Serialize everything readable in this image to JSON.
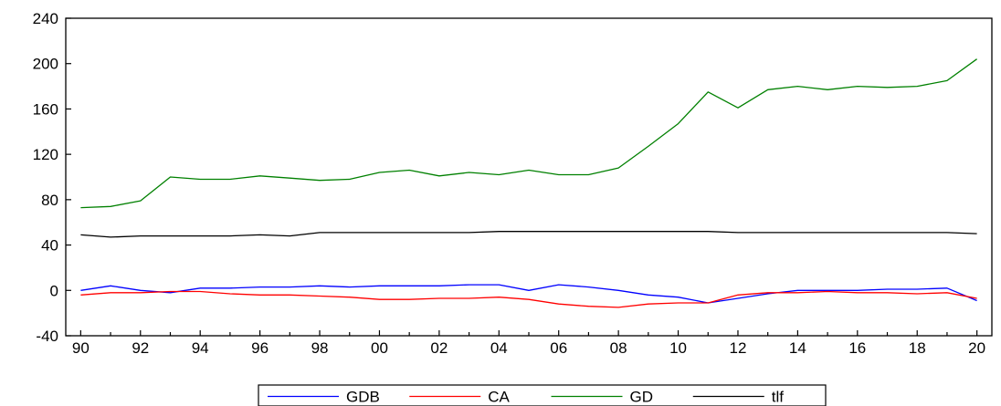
{
  "chart_data": {
    "type": "line",
    "title": "",
    "xlabel": "",
    "ylabel": "",
    "x": [
      1990,
      1991,
      1992,
      1993,
      1994,
      1995,
      1996,
      1997,
      1998,
      1999,
      2000,
      2001,
      2002,
      2003,
      2004,
      2005,
      2006,
      2007,
      2008,
      2009,
      2010,
      2011,
      2012,
      2013,
      2014,
      2015,
      2016,
      2017,
      2018,
      2019,
      2020
    ],
    "x_tick_labels": [
      "90",
      "92",
      "94",
      "96",
      "98",
      "00",
      "02",
      "04",
      "06",
      "08",
      "10",
      "12",
      "14",
      "16",
      "18",
      "20"
    ],
    "x_tick_years": [
      1990,
      1992,
      1994,
      1996,
      1998,
      2000,
      2002,
      2004,
      2006,
      2008,
      2010,
      2012,
      2014,
      2016,
      2018,
      2020
    ],
    "xlim": [
      1989.5,
      2020.5
    ],
    "ylim": [
      -40,
      240
    ],
    "y_ticks": [
      -40,
      0,
      40,
      80,
      120,
      160,
      200,
      240
    ],
    "y_tick_labels": [
      "-40",
      "0",
      "40",
      "80",
      "120",
      "160",
      "200",
      "240"
    ],
    "grid": false,
    "legend_position": "bottom-center",
    "series": [
      {
        "name": "GDB",
        "color": "#0000ff",
        "values": [
          0,
          4,
          0,
          -2,
          2,
          2,
          3,
          3,
          4,
          3,
          4,
          4,
          4,
          5,
          5,
          0,
          5,
          3,
          0,
          -4,
          -6,
          -11,
          -7,
          -3,
          0,
          0,
          0,
          1,
          1,
          2,
          -9
        ]
      },
      {
        "name": "CA",
        "color": "#ff0000",
        "values": [
          -4,
          -2,
          -2,
          -1,
          -1,
          -3,
          -4,
          -4,
          -5,
          -6,
          -8,
          -8,
          -7,
          -7,
          -6,
          -8,
          -12,
          -14,
          -15,
          -12,
          -11,
          -11,
          -4,
          -2,
          -2,
          -1,
          -2,
          -2,
          -3,
          -2,
          -7
        ]
      },
      {
        "name": "GD",
        "color": "#008000",
        "values": [
          73,
          74,
          79,
          100,
          98,
          98,
          101,
          99,
          97,
          98,
          104,
          106,
          101,
          104,
          102,
          106,
          102,
          102,
          108,
          127,
          147,
          175,
          161,
          177,
          180,
          177,
          180,
          179,
          180,
          185,
          204
        ]
      },
      {
        "name": "tlf",
        "color": "#000000",
        "values": [
          49,
          47,
          48,
          48,
          48,
          48,
          49,
          48,
          51,
          51,
          51,
          51,
          51,
          51,
          52,
          52,
          52,
          52,
          52,
          52,
          52,
          52,
          51,
          51,
          51,
          51,
          51,
          51,
          51,
          51,
          50
        ]
      }
    ]
  }
}
